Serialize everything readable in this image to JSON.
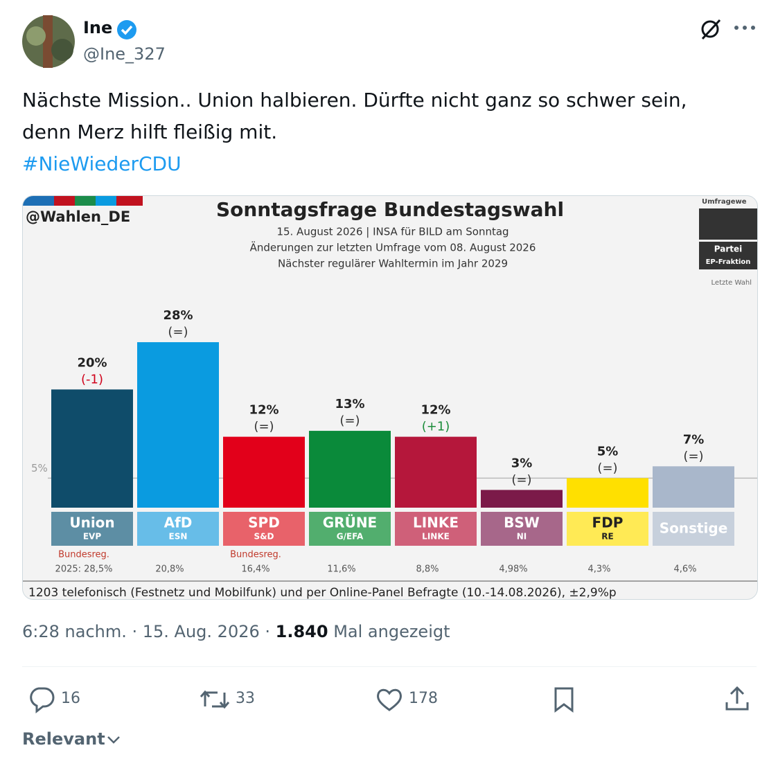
{
  "tweet": {
    "name": "Ine",
    "handle": "@Ine_327",
    "text": [
      "Nächste Mission.. Union halbieren. Dürfte nicht ganz so schwer sein,",
      "denn Merz hilft fleißig mit."
    ],
    "hashtag": "#NieWiederCDU",
    "time": "6:28 nachm.",
    "date": "15. Aug. 2026",
    "views": "1.840",
    "views_label": "Mal angezeigt",
    "replies": 16,
    "reposts": 33,
    "likes": 178,
    "sort": "Relevant"
  },
  "chart_data": {
    "type": "bar",
    "source": "@Wahlen_DE",
    "title": "Sonntagsfrage Bundestagswahl",
    "subtitle": [
      "15. August 2026 | INSA für BILD am Sonntag",
      "Änderungen zur letzten Umfrage vom 08. August 2026",
      "Nächster regulärer Wahltermin im Jahr 2029"
    ],
    "legend": {
      "poll": "Umfragewe",
      "party": "Partei",
      "group": "EP-Fraktion",
      "last": "Letzte Wahl"
    },
    "categories": [
      "Union",
      "AfD",
      "SPD",
      "GRÜNE",
      "LINKE",
      "BSW",
      "FDP",
      "Sonstige"
    ],
    "groups": [
      "EVP",
      "ESN",
      "S&D",
      "G/EFA",
      "LINKE",
      "NI",
      "RE",
      null
    ],
    "values": [
      20,
      28,
      12,
      13,
      12,
      3,
      5,
      7
    ],
    "value_labels": [
      "20%",
      "28%",
      "12%",
      "13%",
      "12%",
      "3%",
      "5%",
      "7%"
    ],
    "changes": [
      "(-1)",
      "(=)",
      "(=)",
      "(=)",
      "(+1)",
      "(=)",
      "(=)",
      "(=)"
    ],
    "colors": [
      "#0f4c6a",
      "#0a9be0",
      "#e2001a",
      "#0a8a3a",
      "#b5173b",
      "#7b1a49",
      "#ffe000",
      "#a9b7cb"
    ],
    "label_colors": [
      "#5d8ea4",
      "#67bde8",
      "#e8626a",
      "#52ae6e",
      "#cf6079",
      "#a7678a",
      "#ffea55",
      "#c7d0dc"
    ],
    "government": [
      "Bundesreg.",
      null,
      "Bundesreg.",
      null,
      null,
      null,
      null,
      null
    ],
    "last_election": [
      "2025: 28,5%",
      "20,8%",
      "16,4%",
      "11,6%",
      "8,8%",
      "4,98%",
      "4,3%",
      "4,6%"
    ],
    "reference_line": {
      "value": 5,
      "label": "5%"
    },
    "ylim": [
      0,
      30
    ],
    "footnote": "1203 telefonisch (Festnetz und Mobilfunk) und per Online-Panel Befragte (10.-14.08.2026), ±2,9%p"
  }
}
